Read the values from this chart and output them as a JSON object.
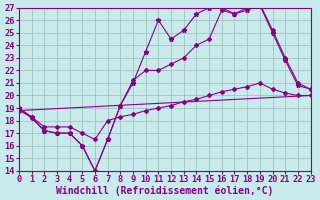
{
  "background_color": "#c8eaea",
  "line_color": "#880088",
  "grid_color": "#99bbbb",
  "xlabel": "Windchill (Refroidissement éolien,°C)",
  "xlabel_fontsize": 7.0,
  "tick_fontsize": 6.2,
  "xlim": [
    0,
    23
  ],
  "ylim": [
    14,
    27
  ],
  "yticks": [
    14,
    15,
    16,
    17,
    18,
    19,
    20,
    21,
    22,
    23,
    24,
    25,
    26,
    27
  ],
  "xticks": [
    0,
    1,
    2,
    3,
    4,
    5,
    6,
    7,
    8,
    9,
    10,
    11,
    12,
    13,
    14,
    15,
    16,
    17,
    18,
    19,
    20,
    21,
    22,
    23
  ],
  "line1_x": [
    0,
    1,
    2,
    3,
    4,
    5,
    6,
    7,
    8,
    9,
    10,
    11,
    12,
    13,
    14,
    15,
    16,
    17,
    18,
    19,
    20,
    21,
    22,
    23
  ],
  "line1_y": [
    19.0,
    18.3,
    17.2,
    17.0,
    17.0,
    16.0,
    14.0,
    16.5,
    19.2,
    21.0,
    23.5,
    26.0,
    24.5,
    25.2,
    26.5,
    27.0,
    27.0,
    26.5,
    26.8,
    27.2,
    25.0,
    22.8,
    20.8,
    20.5
  ],
  "line2_x": [
    0,
    1,
    2,
    3,
    4,
    5,
    6,
    7,
    8,
    9,
    10,
    11,
    12,
    13,
    14,
    15,
    16,
    17,
    18,
    19,
    20,
    21,
    22,
    23
  ],
  "line2_y": [
    19.0,
    18.2,
    17.2,
    17.0,
    17.0,
    16.0,
    14.0,
    16.5,
    19.2,
    21.2,
    22.0,
    22.0,
    22.5,
    23.0,
    24.0,
    24.5,
    26.8,
    26.5,
    27.0,
    27.3,
    25.2,
    23.0,
    21.0,
    20.5
  ],
  "line3_x": [
    0,
    1,
    2,
    3,
    4,
    5,
    6,
    7,
    8,
    9,
    10,
    11,
    12,
    13,
    14,
    15,
    16,
    17,
    18,
    19,
    20,
    21,
    22,
    23
  ],
  "line3_y": [
    18.8,
    18.3,
    17.5,
    17.5,
    17.5,
    17.0,
    16.5,
    18.0,
    18.3,
    18.5,
    18.8,
    19.0,
    19.2,
    19.5,
    19.7,
    20.0,
    20.3,
    20.5,
    20.7,
    21.0,
    20.5,
    20.2,
    20.0,
    20.0
  ],
  "line4_x": [
    0,
    23
  ],
  "line4_y": [
    18.8,
    20.0
  ],
  "marker": "D",
  "marker_size": 2.0
}
